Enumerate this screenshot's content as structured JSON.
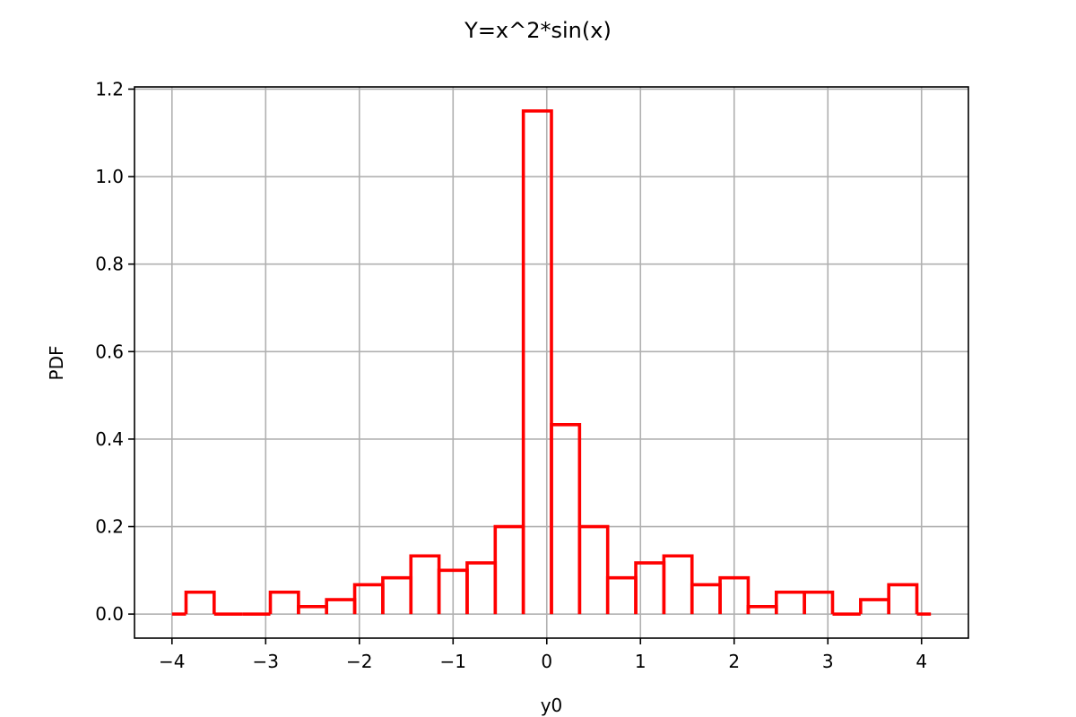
{
  "chart_data": {
    "type": "histogram",
    "title": "Y=x^2*sin(x)",
    "xlabel": "y0",
    "ylabel": "PDF",
    "xlim": [
      -4.4,
      4.5
    ],
    "ylim": [
      -0.055,
      1.205
    ],
    "xticks": [
      -4,
      -3,
      -2,
      -1,
      0,
      1,
      2,
      3,
      4
    ],
    "xtick_labels": [
      "−4",
      "−3",
      "−2",
      "−1",
      "0",
      "1",
      "2",
      "3",
      "4"
    ],
    "yticks": [
      0.0,
      0.2,
      0.4,
      0.6,
      0.8,
      1.0,
      1.2
    ],
    "ytick_labels": [
      "0.0",
      "0.2",
      "0.4",
      "0.6",
      "0.8",
      "1.0",
      "1.2"
    ],
    "grid": true,
    "line_color": "#ff0000",
    "bin_edges": [
      -4.0,
      -3.85,
      -3.55,
      -3.25,
      -2.95,
      -2.65,
      -2.35,
      -2.05,
      -1.75,
      -1.45,
      -1.15,
      -0.85,
      -0.55,
      -0.25,
      0.05,
      0.35,
      0.65,
      0.95,
      1.25,
      1.55,
      1.85,
      2.15,
      2.45,
      2.75,
      3.05,
      3.35,
      3.65,
      3.95,
      4.1
    ],
    "values": [
      0.0,
      0.05,
      0.0,
      0.0,
      0.05,
      0.017,
      0.033,
      0.067,
      0.083,
      0.133,
      0.1,
      0.117,
      0.2,
      1.15,
      0.433,
      0.2,
      0.083,
      0.117,
      0.133,
      0.067,
      0.083,
      0.017,
      0.05,
      0.05,
      0.0,
      0.033,
      0.067,
      0.0
    ]
  }
}
